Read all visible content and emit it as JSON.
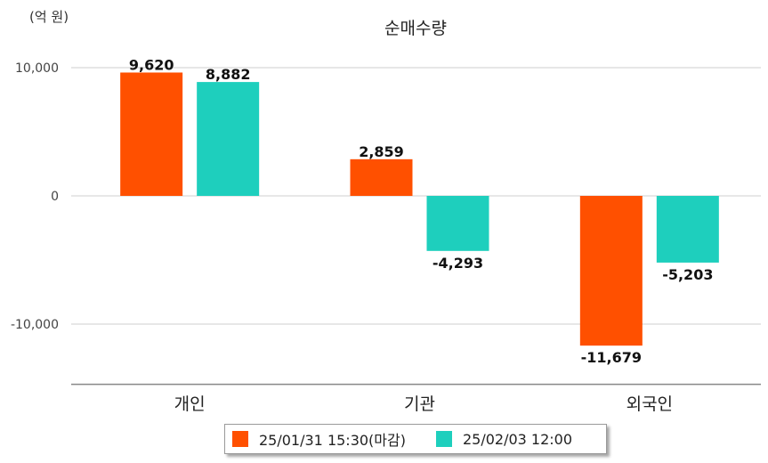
{
  "chart_data": {
    "type": "bar",
    "title": "순매수량",
    "unit_label": "(억 원)",
    "categories": [
      "개인",
      "기관",
      "외국인"
    ],
    "series": [
      {
        "name": "25/01/31 15:30(마감)",
        "color": "#ff5000",
        "values": [
          9620,
          2859,
          -11679
        ]
      },
      {
        "name": "25/02/03 12:00",
        "color": "#1ecfbd",
        "values": [
          8882,
          -4293,
          -5203
        ]
      }
    ],
    "data_labels": [
      [
        "9,620",
        "2,859",
        "-11,679"
      ],
      [
        "8,882",
        "-4,293",
        "-5,203"
      ]
    ],
    "y_ticks": [
      10000,
      0,
      -10000
    ],
    "y_tick_labels": [
      "10,000",
      "0",
      "-10,000"
    ],
    "ylim": [
      -14700,
      10000
    ],
    "grid": true,
    "legend_position": "bottom"
  }
}
